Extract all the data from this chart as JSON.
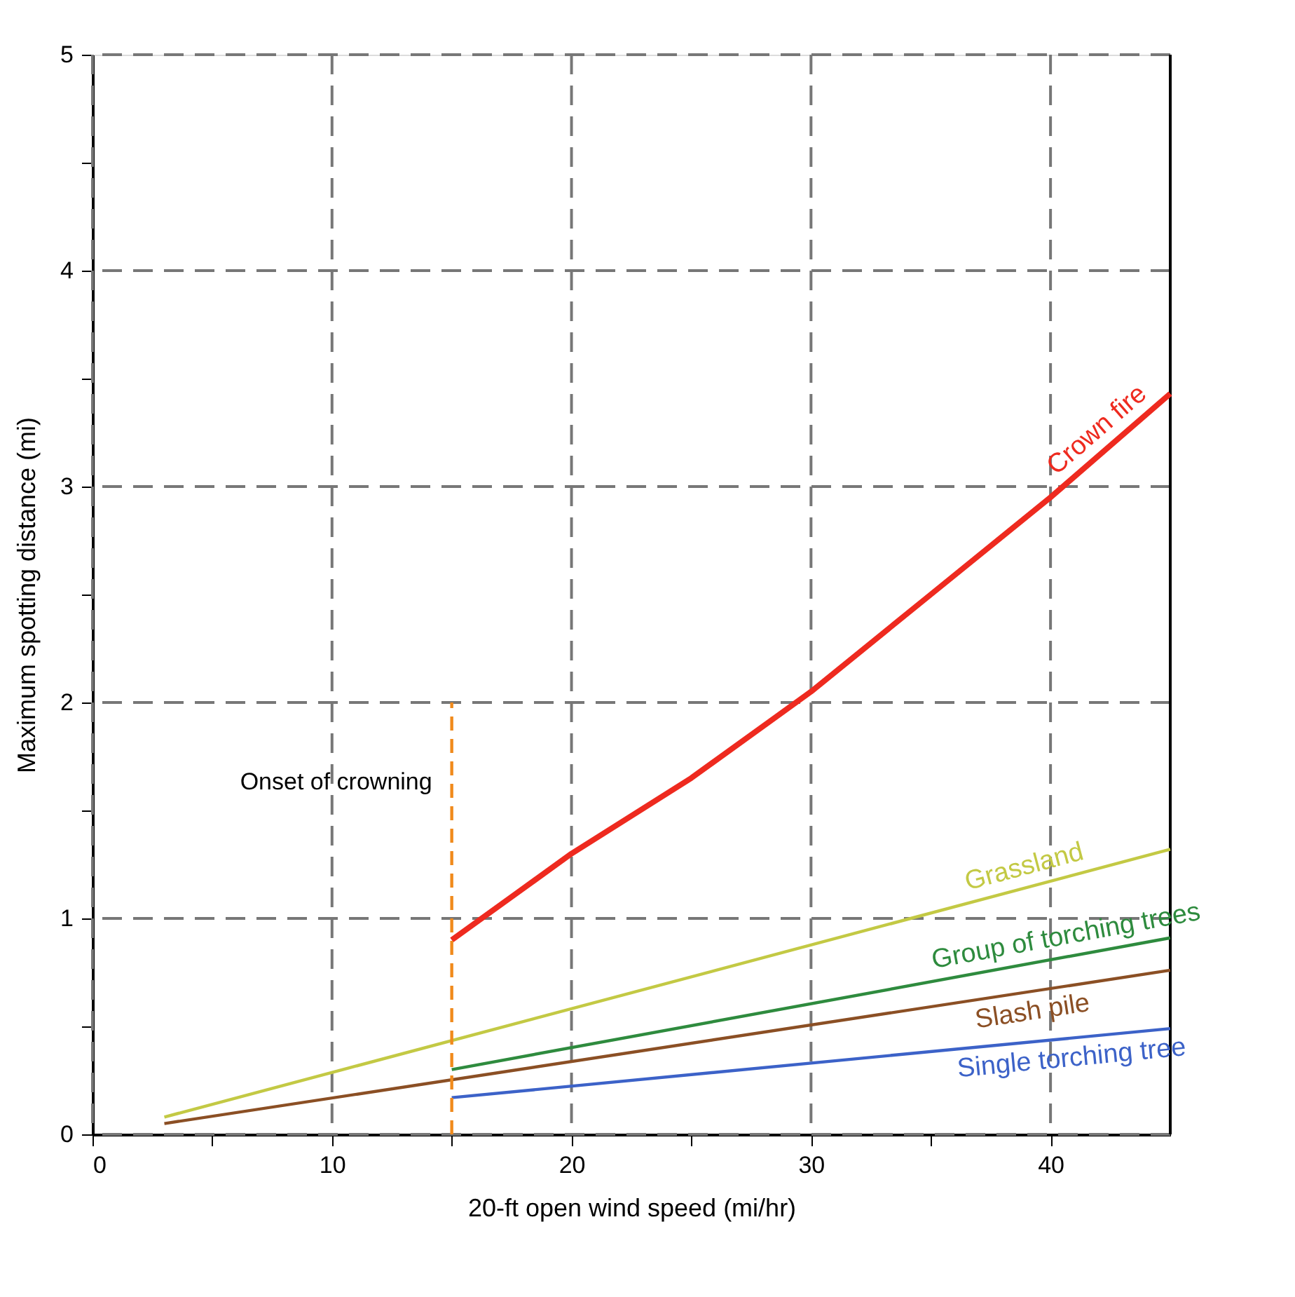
{
  "chart_data": {
    "type": "line",
    "xlabel": "20-ft open wind speed (mi/hr)",
    "ylabel": "Maximum spotting distance (mi)",
    "xlim": [
      0,
      45
    ],
    "ylim": [
      0,
      5
    ],
    "xticks": [
      0,
      {
        "value": 5,
        "label": null
      },
      10,
      {
        "value": 15,
        "label": null
      },
      20,
      {
        "value": 25,
        "label": null
      },
      30,
      {
        "value": 35,
        "label": null
      },
      40
    ],
    "yticks": [
      0,
      {
        "value": 0.5,
        "label": null
      },
      1,
      {
        "value": 1.5,
        "label": null
      },
      2,
      {
        "value": 2.5,
        "label": null
      },
      3,
      {
        "value": 3.5,
        "label": null
      },
      4,
      {
        "value": 4.5,
        "label": null
      },
      5
    ],
    "grid": true,
    "legend": false,
    "marker": "none",
    "series": [
      {
        "name": "Crown fire",
        "color": "#ee2a1f",
        "x": [
          15,
          20,
          25,
          30,
          35,
          40,
          45
        ],
        "values": [
          0.9,
          1.3,
          1.65,
          2.05,
          2.5,
          2.95,
          3.43
        ]
      },
      {
        "name": "Grassland",
        "color": "#c3c944",
        "x": [
          3,
          45
        ],
        "values": [
          0.08,
          1.32
        ]
      },
      {
        "name": "Group of torching trees",
        "color": "#2e8b3e",
        "x": [
          15,
          45
        ],
        "values": [
          0.3,
          0.91
        ]
      },
      {
        "name": "Slash pile",
        "color": "#8b4f24",
        "x": [
          3,
          45
        ],
        "values": [
          0.05,
          0.76
        ]
      },
      {
        "name": "Single torching tree",
        "color": "#3c62c8",
        "x": [
          15,
          45
        ],
        "values": [
          0.17,
          0.49
        ]
      },
      {
        "color": "#f08a1c",
        "x": [
          15,
          15
        ],
        "values": [
          0,
          2
        ],
        "line_style": "dashed"
      }
    ],
    "annotations": [
      "Onset of crowning"
    ]
  }
}
